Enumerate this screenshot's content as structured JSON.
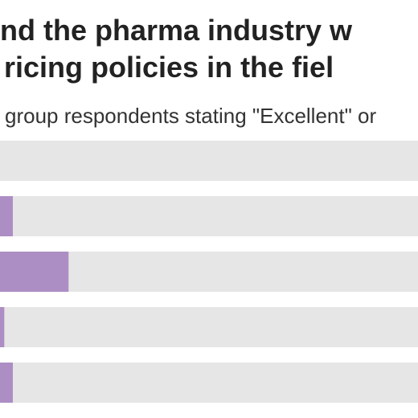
{
  "title_lines": [
    "nd the pharma industry w",
    "ricing policies in the fiel"
  ],
  "subtitle": "group respondents stating \"Excellent\" or",
  "colors": {
    "track": "#e6e6e6",
    "bar": "#ad8ec4",
    "title": "#222222",
    "subtitle": "#333333"
  },
  "chart_data": {
    "type": "bar",
    "orientation": "horizontal",
    "title": "nd the pharma industry w ricing policies in the fiel",
    "subtitle": "group respondents stating \"Excellent\" or",
    "categories": [
      "",
      "",
      "",
      "",
      ""
    ],
    "values": [
      0,
      3,
      16,
      1,
      3
    ],
    "xlim": [
      0,
      100
    ],
    "grid": false,
    "legend": "none"
  }
}
